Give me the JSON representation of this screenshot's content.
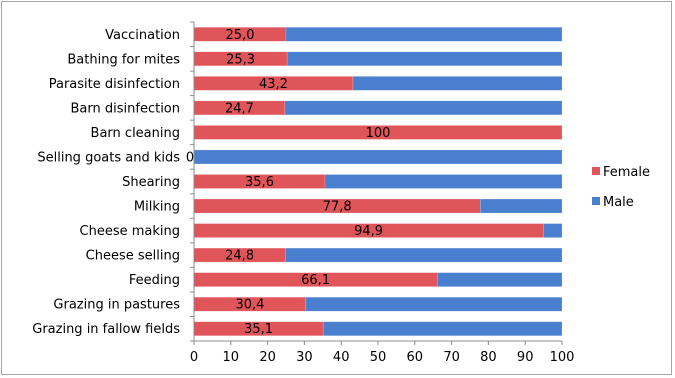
{
  "chart_data": {
    "type": "bar",
    "orientation": "horizontal",
    "stacked": "percent",
    "categories": [
      "Vaccination",
      "Bathing for mites",
      "Parasite disinfection",
      "Barn disinfection",
      "Barn cleaning",
      "Selling goats and kids",
      "Shearing",
      "Milking",
      "Cheese making",
      "Cheese selling",
      "Feeding",
      "Grazing in pastures",
      "Grazing in fallow fields"
    ],
    "series": [
      {
        "name": "Female",
        "color": "#e0555a",
        "values": [
          25.0,
          25.3,
          43.2,
          24.7,
          100,
          0,
          35.6,
          77.8,
          94.9,
          24.8,
          66.1,
          30.4,
          35.1
        ],
        "labels": [
          "25,0",
          "25,3",
          "43,2",
          "24,7",
          "100",
          "0",
          "35,6",
          "77,8",
          "94,9",
          "24,8",
          "66,1",
          "30,4",
          "35,1"
        ]
      },
      {
        "name": "Male",
        "color": "#4a7fcf",
        "values": [
          75.0,
          74.7,
          56.8,
          75.3,
          0,
          100,
          64.4,
          22.2,
          5.1,
          75.2,
          33.9,
          69.6,
          64.9
        ]
      }
    ],
    "xlim": [
      0,
      100
    ],
    "xticks": [
      "0",
      "10",
      "20",
      "30",
      "40",
      "50",
      "60",
      "70",
      "80",
      "90",
      "100"
    ],
    "legend_position": "right",
    "grid": false
  }
}
